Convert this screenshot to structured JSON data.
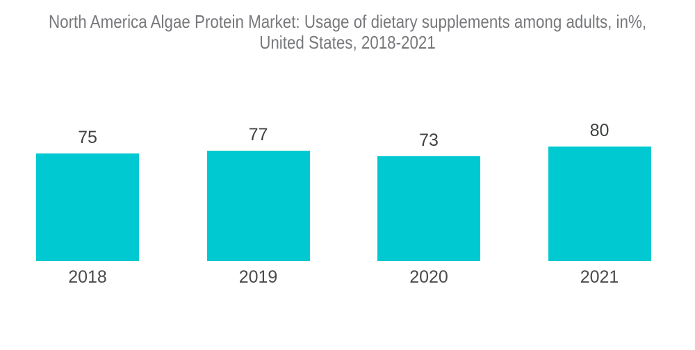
{
  "page": {
    "background_color": "#ffffff"
  },
  "chart_data": {
    "type": "bar",
    "title": "North America Algae Protein Market: Usage of dietary supplements among adults, in%, United States, 2018-2021",
    "title_lines": [
      "North America Algae Protein Market: Usage of dietary supplements among adults, in%,",
      "United States, 2018-2021"
    ],
    "categories": [
      "2018",
      "2019",
      "2020",
      "2021"
    ],
    "values": [
      75,
      77,
      73,
      80
    ],
    "data_labels_visible": true,
    "xlabel": "",
    "ylabel": "",
    "legend": "none",
    "grid": false,
    "y_axis_visible": false,
    "x_axis_visible": false,
    "bar_color": "#00c9d2",
    "title_color": "#77787b",
    "value_label_color": "#3f4142",
    "category_label_color": "#4a4b4d",
    "background_color": "#ffffff"
  }
}
